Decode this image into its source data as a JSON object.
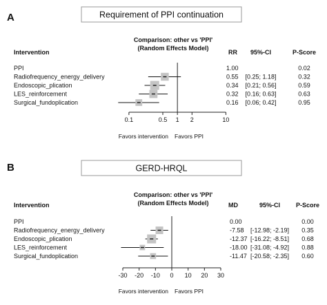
{
  "chart_data": [
    {
      "type": "forest",
      "panel_letter": "A",
      "title": "Requirement of PPI continuation",
      "header": {
        "intervention": "Intervention",
        "comparison_line1": "Comparison: other vs 'PPI'",
        "comparison_line2": "(Random Effects Model)",
        "effect": "RR",
        "ci": "95%-CI",
        "pscore": "P-Score"
      },
      "scale": "log",
      "xlim": [
        0.07,
        12
      ],
      "null_value": 1,
      "ticks": [
        {
          "value": 0.1,
          "label": "0.1"
        },
        {
          "value": 0.5,
          "label": "0.5"
        },
        {
          "value": 1,
          "label": "1"
        },
        {
          "value": 2,
          "label": "2"
        },
        {
          "value": 10,
          "label": "10"
        }
      ],
      "favors_left": "Favors intervention",
      "favors_right": "Favors PPI",
      "rows": [
        {
          "label": "PPI",
          "est": 1,
          "lo": null,
          "hi": null,
          "effect_text": "1.00",
          "ci_text": "",
          "pscore": "0.02",
          "weight": 0
        },
        {
          "label": "Radiofrequency_energy_delivery",
          "est": 0.55,
          "lo": 0.25,
          "hi": 1.18,
          "effect_text": "0.55",
          "ci_text": "[0.25; 1.18]",
          "pscore": "0.32",
          "weight": 0.8
        },
        {
          "label": "Endoscopic_plication",
          "est": 0.34,
          "lo": 0.21,
          "hi": 0.56,
          "effect_text": "0.34",
          "ci_text": "[0.21; 0.56]",
          "pscore": "0.59",
          "weight": 1
        },
        {
          "label": "LES_reinforcement",
          "est": 0.32,
          "lo": 0.16,
          "hi": 0.63,
          "effect_text": "0.32",
          "ci_text": "[0.16; 0.63]",
          "pscore": "0.63",
          "weight": 0.85
        },
        {
          "label": "Surgical_fundoplication",
          "est": 0.16,
          "lo": 0.06,
          "hi": 0.42,
          "effect_text": "0.16",
          "ci_text": "[0.06; 0.42]",
          "pscore": "0.95",
          "weight": 0.6
        }
      ]
    },
    {
      "type": "forest",
      "panel_letter": "B",
      "title": "GERD-HRQL",
      "header": {
        "intervention": "Intervention",
        "comparison_line1": "Comparison: other vs 'PPI'",
        "comparison_line2": "(Random Effects Model)",
        "effect": "MD",
        "ci": "95%-CI",
        "pscore": "P-Score"
      },
      "scale": "linear",
      "xlim": [
        -30,
        30
      ],
      "null_value": 0,
      "ticks": [
        {
          "value": -30,
          "label": "-30"
        },
        {
          "value": -20,
          "label": "-20"
        },
        {
          "value": -10,
          "label": "-10"
        },
        {
          "value": 0,
          "label": "0"
        },
        {
          "value": 10,
          "label": "10"
        },
        {
          "value": 20,
          "label": "20"
        },
        {
          "value": 30,
          "label": "30"
        }
      ],
      "favors_left": "Favors intervention",
      "favors_right": "Favors PPI",
      "rows": [
        {
          "label": "PPI",
          "est": 0,
          "lo": null,
          "hi": null,
          "effect_text": "0.00",
          "ci_text": "",
          "pscore": "0.00",
          "weight": 0
        },
        {
          "label": "Radiofrequency_energy_delivery",
          "est": -7.58,
          "lo": -12.98,
          "hi": -2.19,
          "effect_text": "-7.58",
          "ci_text": "[-12.98; -2.19]",
          "pscore": "0.35",
          "weight": 0.75
        },
        {
          "label": "Endoscopic_plication",
          "est": -12.37,
          "lo": -16.22,
          "hi": -8.51,
          "effect_text": "-12.37",
          "ci_text": "[-16.22; -8.51]",
          "pscore": "0.68",
          "weight": 1
        },
        {
          "label": "LES_reinforcement",
          "est": -18.0,
          "lo": -31.08,
          "hi": -4.92,
          "effect_text": "-18.00",
          "ci_text": "[-31.08; -4.92]",
          "pscore": "0.88",
          "weight": 0.35
        },
        {
          "label": "Surgical_fundoplication",
          "est": -11.47,
          "lo": -20.58,
          "hi": -2.35,
          "effect_text": "-11.47",
          "ci_text": "[-20.58; -2.35]",
          "pscore": "0.60",
          "weight": 0.45
        }
      ]
    }
  ]
}
